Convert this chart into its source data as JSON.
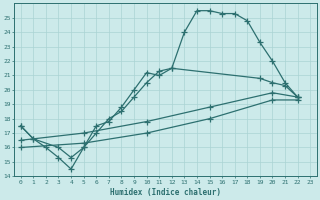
{
  "xlabel": "Humidex (Indice chaleur)",
  "bg_color": "#cceaea",
  "grid_color": "#aad4d4",
  "line_color": "#2d7070",
  "xlim": [
    -0.5,
    23.5
  ],
  "ylim": [
    14,
    26
  ],
  "xticks": [
    0,
    1,
    2,
    3,
    4,
    5,
    6,
    7,
    8,
    9,
    10,
    11,
    12,
    13,
    14,
    15,
    16,
    17,
    18,
    19,
    20,
    21,
    22,
    23
  ],
  "yticks": [
    14,
    15,
    16,
    17,
    18,
    19,
    20,
    21,
    22,
    23,
    24,
    25
  ],
  "line1_x": [
    0,
    1,
    2,
    3,
    4,
    5,
    6,
    7,
    8,
    9,
    10,
    11,
    12,
    13,
    14,
    15,
    16,
    17,
    18,
    19,
    20,
    21,
    22
  ],
  "line1_y": [
    17.5,
    16.6,
    16.0,
    15.3,
    14.5,
    16.0,
    17.5,
    17.8,
    18.8,
    20.0,
    21.2,
    21.0,
    21.5,
    24.0,
    25.5,
    25.5,
    25.3,
    25.3,
    24.8,
    23.3,
    22.0,
    20.5,
    19.5
  ],
  "line2_x": [
    0,
    1,
    3,
    4,
    5,
    6,
    7,
    8,
    9,
    10,
    11,
    12,
    19,
    20,
    21,
    22
  ],
  "line2_y": [
    17.5,
    16.6,
    16.0,
    15.3,
    16.0,
    17.0,
    18.0,
    18.5,
    19.5,
    20.5,
    21.3,
    21.5,
    20.8,
    20.5,
    20.3,
    19.5
  ],
  "line3_x": [
    0,
    5,
    10,
    15,
    20,
    22
  ],
  "line3_y": [
    16.5,
    17.0,
    17.8,
    18.8,
    19.8,
    19.5
  ],
  "line4_x": [
    0,
    5,
    10,
    15,
    20,
    22
  ],
  "line4_y": [
    16.0,
    16.3,
    17.0,
    18.0,
    19.3,
    19.3
  ]
}
